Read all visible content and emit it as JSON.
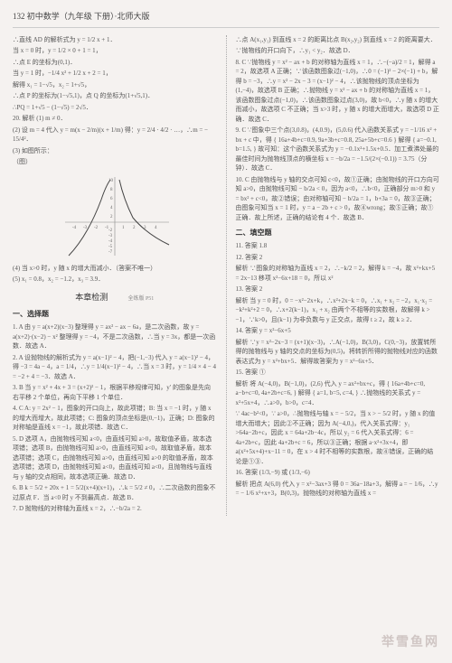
{
  "header": {
    "page_num": "132",
    "title": "初中数学（九年级  下册）·北师大版"
  },
  "left_col": {
    "lines_before_chart": [
      "∴直线 AD 的解析式为 y = 1/2 x + 1．",
      "当 x = 0 时，y = 1/2 × 0 + 1 = 1，",
      "∴点 E 的坐标为(0,1)．",
      "当 y = 1 时，−1/4 x² + 1/2 x + 2 = 1，",
      "解得 x₁ = 1−√5，x₂ = 1+√5，",
      "∴点 P 的坐标为(1−√5,1)，点 Q 的坐标为(1+√5,1)．",
      "∴PQ = 1+√5 − (1−√5) = 2√5．",
      "20. 解析  (1) m ≠ 0．",
      "(2) 设 m = 4 代入 y = m(x − 2/m)(x + 1/m) 得：y = 2/4 · 4/2 · …，∴m = − 15/4²．",
      "(3) 如图所示：",
      "（图）"
    ],
    "chart": {
      "type": "scatter-line",
      "width": 130,
      "height": 95,
      "x_range": [
        -4,
        4
      ],
      "y_range": [
        -7,
        10
      ],
      "x_ticks": [
        -4,
        -3,
        -2,
        -1,
        1,
        2,
        3,
        4
      ],
      "y_ticks": [
        -7,
        -6,
        -5,
        -4,
        -3,
        -2,
        -1,
        2,
        4,
        6,
        8,
        10
      ],
      "curve_color": "#666666",
      "axis_color": "#888888",
      "grid_color": "#dddddd",
      "background": "#f5f2f0",
      "points": [
        {
          "x": -3.5,
          "y": -6
        },
        {
          "x": -2.5,
          "y": -2
        },
        {
          "x": -1.5,
          "y": 2
        },
        {
          "x": -0.8,
          "y": 6
        },
        {
          "x": 0,
          "y": 0
        },
        {
          "x": 0.8,
          "y": 8
        },
        {
          "x": 1.5,
          "y": 3
        },
        {
          "x": 2.5,
          "y": 0.5
        },
        {
          "x": 3.5,
          "y": -1.5
        }
      ]
    },
    "lines_after_chart": [
      "(4) 当 x>0 时，y 随 x 的增大而减小．（答案不唯一）",
      "(5) x₁ = 0.8，x₂ = −1.2，x₃ = 3.9．"
    ],
    "section_header": "本章检测",
    "section_sub": "全练版 P51",
    "choice_title": "一、选择题",
    "choice_items": [
      "1. A  由 y = a(x+2)(x−3) 整理得 y = ax² − ax − 6a，是二次函数，故 y = a(x+2)·(x−2) − x² 整理得 y = −4，不是二次函数，∴当 y = 3x，都是一次函数．故选 A．",
      "2. A  设抛物线的解析式为 y = a(x−1)² − 4，把(−1,−3) 代入 y = a(x−1)² − 4，得 −3 = 4a − 4，a = 1/4，∴y = 1/4(x−1)² − 4，∴当 x = 3 时，y = 1/4 × 4 − 4 = −2 + 4 = −3．故选 A．",
      "3. B  当 y = x² + 4x + 3 = (x+2)² − 1，根据平移规律可知，y′ 的图象是先向右平移 2 个单位，再向下平移 1 个单位．",
      "4. C  A: y = 2x² − 1，图象的开口向上，故此项错；B: 当 x = −1 时，y 随 x 的增大而增大，故此项错；C: 图象的顶点坐标是(0,−1)，正确；D: 图象的对称轴是直线 x = −1，故此项错．故选 C．",
      "5. D  选项 A，由抛物线可知 a<0，由直线可知 a>0，故取值矛盾，故本选项错；选项 B，由抛物线可知 a>0，由直线可知 a<0，故取值矛盾，故本选项错；选项 C，由抛物线可知 a>0，由直线可知 a>0 的取值矛盾，故本选项错；选项 D，由抛物线可知 a<0，由直线可知 a<0，且抛物线与直线与 y 轴的交点相同，故本选项正确．故选 D．",
      "6. B  k = 5/2 + 20x + 1 = 5/2(x+4)(x+1)，∴k = 5/2 ≠ 0，∴二次函数的图象不过原点 F．当 a<0 时 y 不到最高点．故选 B．",
      "7. D  抛物线的对称轴为直线 x = 2，∴−b/2a = 2."
    ]
  },
  "right_col": {
    "lines_top": [
      "∴点 A(x₁,y₁) 到直线 x = 2 的距离比点 B(x₂,y₂) 到直线 x = 2 的距离要大．",
      "∵抛物线的开口向下，∴y₁ < y₂．故选 D．",
      "8. C  ∵抛物线 y = x² − ax + b 的对称轴为直线 x = 1，∴−(−a)/2 = 1，解得 a = 2，故选项 A 正确；∵该函数图象过(−1,0)，∴0 = (−1)² − 2×(−1) + b，解得 b = −3，∴y = x² − 2x − 3 = (x−1)² − 4，∴该抛物线的顶点坐标为(1,−4)，故选项 B 正确；∴抛物线 y = x² − ax + b 的对称轴为直线 x = 1，该函数图象过点(−1,0)，∴该函数图象过点(3,0)，故 b<0，∴y 随 x 的增大而减小，故选项 C 不正确；当 x>3 时，y 随 x 的增大而增大，故选项 D 正确．故选 C．",
      "9. C  ∵图象中三个点(3,0.8)，(4,0.9)，(5,0.6) 代入函数关系式 y = −1/16 x² + bx + c 中，得 { 16a+4b+c=0.9, 9a+3b+c=0.8, 25a+5b+c=0.6 } 解得 { a=−0.1, b=1.5, } 故可知：这个函数关系式为 y = −0.1x²+1.5x+0.5．加工煮沸处最的最佳时间为抛物线顶点的横坐标 x = −b/2a = −1.5/(2×(−0.1)) = 3.75（分钟）．故选 C．",
      "10. C  由抛物线与 y 轴的交点可知 c<0，故①正确；由抛物线的开口方向可知 a>0，由抛物线可知 − b/2a < 0，因为 a<0，∴b<0，正确部分 m>0 和 y = bx² + c<0，故②错误；由对称轴可知 − b/2a = 1，b+3a = 0，故③正确；由图象可知当 x = 1 时，y = a − 2b + c > 0，故④wrong；故⑤正确；故①正确．故上所述，正确的结论有 4 个．故选 B．"
    ],
    "fill_title": "二、填空题",
    "fill_items": [
      "11. 答案  1.8",
      "12. 答案  2",
      "解析  ∵图象的对称轴为直线 x = 2，∴−k/2 = 2，解得 k = −4，故 x²+kx+5 = 2x−13 移项 x²−6x+18 = 0，所以 x²",
      "13. 答案  2",
      "解析  当 y = 0 时，0 = −x²−2x+k，∴x²+2x−k = 0，∴x₁ + x₂ = −2，x₁·x₂ = −k²+k²+2 = 0，∴x+2(k−1)，x₁ + x₂ 由两个不相等的实数根，故解得 k > −1，∵k>0，且(k−1) 为非负数与 y 正交点，故得 t ≥ 2，故 k ≥ 2．",
      "14. 答案  y = x²−6x+5",
      "解析  ∵y = x²−2x−3 = (x+1)(x−3)，∴A(−1,0)，B(3,0)，C(0,−3)，放置转所得的抛物线与 y 轴的交点的坐标为(0,5)，将转折所得的抛物线对应的函数表达式为 y = x²+bx+5．解得故答案为 y = x²−6x+5．",
      "15. 答案  ①",
      "解析  将 A(−4,0)，B(−1,0)，(2,6) 代入 y = ax²+bx+c，得 { 16a+4b+c=0, a−b+c=0, 4a+2b+c=6, } 解得 { a=1, b=5, c=4, } ∴抛物线的关系式 y = x²+5x+4，∴a>0，b>0，c=4．",
      "∵ 4ac−b²<0，∵ a>0，∴抛物线与轴 x = − 5/2，当 x > − 5/2 时，y 随 x 的值增大而增大；因此②不正确；因为 A(−4,0,)，代入关系式得：y₁ >64a−2b+c，因此 x = 64a+2b−4c，所以 y₂ = 6 代入关系式得：6 = 4a+2b+c，因此 4a+2b+c = 6，所以③正确；根据 a·x²+3x+4，即 a(x²+5x+4)+x−11 = 0，在 x > 4 时不相等的实数根，故④错误，正确的结论是①③．",
      "16. 答案  (1/3,−9) 或 (1/3,−6)",
      "解析  把点 A(6,0) 代入 y = x²−3ax+3 得 0 = 36a−18a+3，解得 a = − 1/6，∴y = − 1/6 x²+x+3，B(0,3)，抛物线的对称轴为直线 x ="
    ]
  },
  "watermark": "举雪鱼网"
}
